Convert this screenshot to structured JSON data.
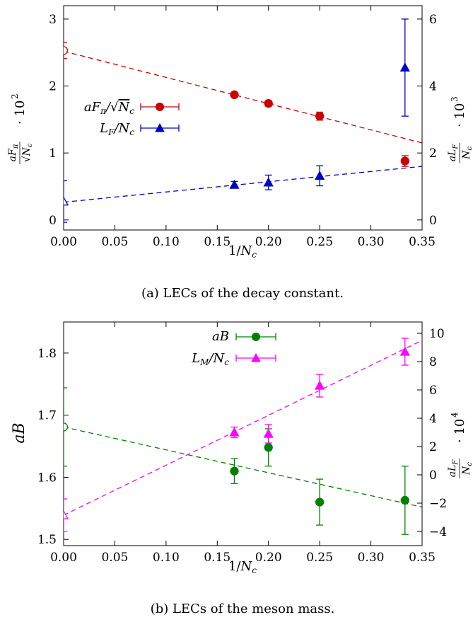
{
  "chart_data": [
    {
      "type": "scatter",
      "caption": "(a) LECs of the decay constant.",
      "xlabel": "1/N_c",
      "ylabel_left": "aF_π/√N_c · 10²",
      "ylabel_right": "aL_F/N_c · 10³",
      "xlim": [
        0,
        0.35
      ],
      "ylim_left": [
        -0.15,
        3.2
      ],
      "ylim_right": [
        -0.3,
        6.4
      ],
      "x_ticks": [
        "0.00",
        "0.05",
        "0.10",
        "0.15",
        "0.20",
        "0.25",
        "0.30",
        "0.35"
      ],
      "y_ticks_left": [
        "0",
        "1",
        "2",
        "3"
      ],
      "y_ticks_right": [
        "0",
        "2",
        "4",
        "6"
      ],
      "grid": false,
      "legend_position": "middle-left",
      "series": [
        {
          "name": "aF_π/√N_c",
          "axis": "left",
          "color": "#cc0000",
          "marker": "circle",
          "x": [
            0.0,
            0.1667,
            0.2,
            0.25,
            0.3333
          ],
          "y": [
            2.53,
            1.87,
            1.74,
            1.55,
            0.88
          ],
          "yerr": [
            0.12,
            0.03,
            0.04,
            0.06,
            0.08
          ],
          "open": [
            true,
            false,
            false,
            false,
            false
          ],
          "fit": {
            "x": [
              0,
              0.35
            ],
            "y": [
              2.52,
              1.15
            ]
          }
        },
        {
          "name": "L_F/N_c",
          "axis": "right",
          "color": "#0000cc",
          "marker": "triangle",
          "x": [
            0.0,
            0.1667,
            0.2,
            0.25,
            0.3333
          ],
          "y": [
            0.55,
            1.05,
            1.12,
            1.32,
            4.55
          ],
          "yerr": [
            0.62,
            0.1,
            0.22,
            0.3,
            1.45
          ],
          "open": [
            true,
            false,
            false,
            false,
            false
          ],
          "fit": {
            "x": [
              0,
              0.35
            ],
            "y": [
              0.53,
              1.6
            ]
          }
        }
      ]
    },
    {
      "type": "scatter",
      "caption": "(b) LECs of the meson mass.",
      "xlabel": "1/N_c",
      "ylabel_left": "aB",
      "ylabel_right": "aL_F/N_c · 10⁴",
      "xlim": [
        0,
        0.35
      ],
      "ylim_left": [
        1.49,
        1.85
      ],
      "ylim_right": [
        -5,
        10.8
      ],
      "x_ticks": [
        "0.00",
        "0.05",
        "0.10",
        "0.15",
        "0.20",
        "0.25",
        "0.30",
        "0.35"
      ],
      "y_ticks_left": [
        "1.5",
        "1.6",
        "1.7",
        "1.8"
      ],
      "y_ticks_right": [
        "−4",
        "−2",
        "0",
        "2",
        "4",
        "6",
        "8",
        "10"
      ],
      "grid": false,
      "legend_position": "top-right",
      "series": [
        {
          "name": "aB",
          "axis": "left",
          "color": "#008000",
          "marker": "circle",
          "x": [
            0.0,
            0.1667,
            0.2,
            0.25,
            0.3333
          ],
          "y": [
            1.681,
            1.61,
            1.648,
            1.56,
            1.563
          ],
          "yerr": [
            0.063,
            0.02,
            0.03,
            0.037,
            0.055
          ],
          "open": [
            true,
            false,
            false,
            false,
            false
          ],
          "fit": {
            "x": [
              0,
              0.35
            ],
            "y": [
              1.681,
              1.552
            ]
          }
        },
        {
          "name": "L_M/N_c",
          "axis": "right",
          "color": "#ff00ff",
          "marker": "triangle",
          "x": [
            0.0,
            0.1667,
            0.2,
            0.25,
            0.3333
          ],
          "y": [
            -2.85,
            3.0,
            2.9,
            6.3,
            8.7
          ],
          "yerr": [
            1.15,
            0.38,
            0.65,
            0.8,
            0.95
          ],
          "open": [
            true,
            false,
            false,
            false,
            false
          ],
          "fit": {
            "x": [
              0,
              0.35
            ],
            "y": [
              -2.85,
              9.5
            ]
          }
        }
      ]
    }
  ]
}
